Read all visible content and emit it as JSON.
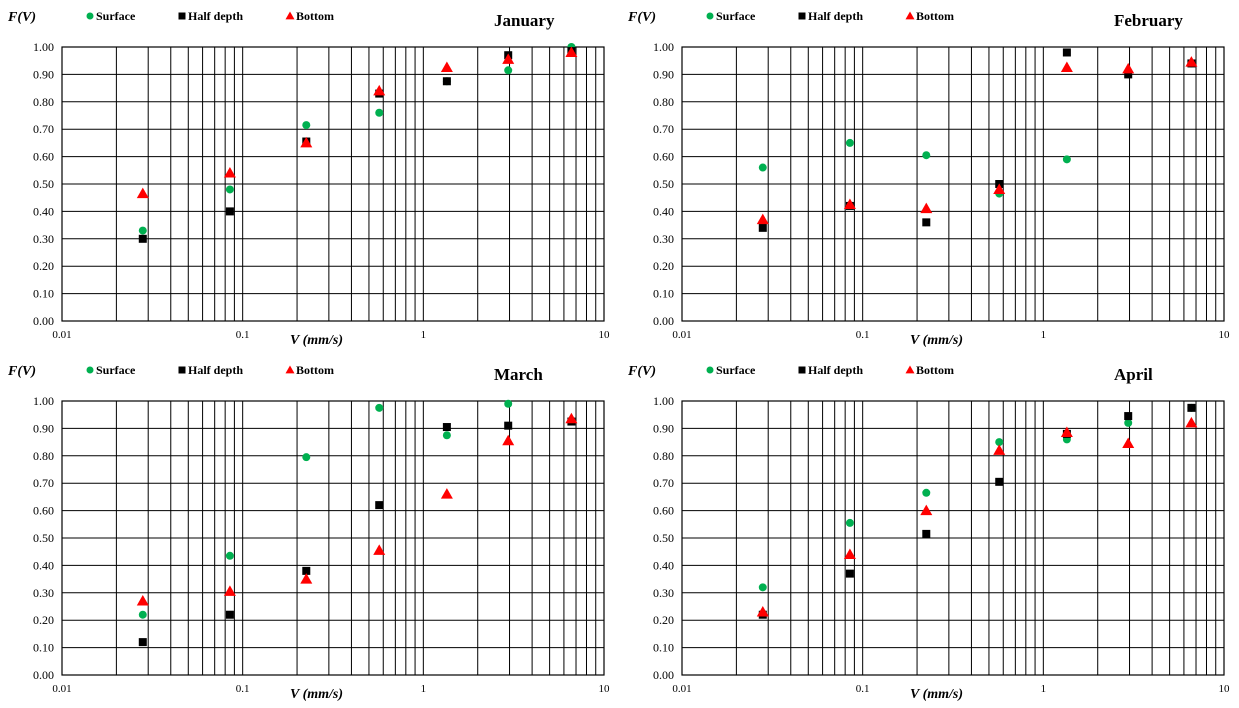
{
  "chart_data": [
    {
      "type": "scatter",
      "title": "January",
      "ylabel": "F(V)",
      "xlabel": "V (mm/s)",
      "xscale": "log",
      "xlim": [
        0.01,
        10
      ],
      "ylim": [
        0,
        1
      ],
      "grid": true,
      "legend_position": "top-left",
      "x_tick_labels": [
        "0.01",
        "0.1",
        "1",
        "10"
      ],
      "y_tick_labels": [
        "0.00",
        "0.10",
        "0.20",
        "0.30",
        "0.40",
        "0.50",
        "0.60",
        "0.70",
        "0.80",
        "0.90",
        "1.00"
      ],
      "series": [
        {
          "name": "Surface",
          "marker": "circle",
          "color": "#00b050",
          "points": [
            [
              0.028,
              0.33
            ],
            [
              0.085,
              0.48
            ],
            [
              0.225,
              0.715
            ],
            [
              0.57,
              0.76
            ],
            [
              1.35,
              0.875
            ],
            [
              2.95,
              0.915
            ],
            [
              6.6,
              1.0
            ]
          ]
        },
        {
          "name": "Half depth",
          "marker": "square",
          "color": "#000000",
          "points": [
            [
              0.028,
              0.3
            ],
            [
              0.085,
              0.4
            ],
            [
              0.225,
              0.655
            ],
            [
              0.57,
              0.83
            ],
            [
              1.35,
              0.875
            ],
            [
              2.95,
              0.97
            ],
            [
              6.6,
              0.985
            ]
          ]
        },
        {
          "name": "Bottom",
          "marker": "triangle",
          "color": "#ff0000",
          "points": [
            [
              0.028,
              0.465
            ],
            [
              0.085,
              0.54
            ],
            [
              0.225,
              0.65
            ],
            [
              0.57,
              0.84
            ],
            [
              1.35,
              0.925
            ],
            [
              2.95,
              0.955
            ],
            [
              6.6,
              0.98
            ]
          ]
        }
      ]
    },
    {
      "type": "scatter",
      "title": "February",
      "ylabel": "F(V)",
      "xlabel": "V (mm/s)",
      "xscale": "log",
      "xlim": [
        0.01,
        10
      ],
      "ylim": [
        0,
        1
      ],
      "grid": true,
      "legend_position": "top-left",
      "x_tick_labels": [
        "0.01",
        "0.1",
        "1",
        "10"
      ],
      "y_tick_labels": [
        "0.00",
        "0.10",
        "0.20",
        "0.30",
        "0.40",
        "0.50",
        "0.60",
        "0.70",
        "0.80",
        "0.90",
        "1.00"
      ],
      "series": [
        {
          "name": "Surface",
          "marker": "circle",
          "color": "#00b050",
          "points": [
            [
              0.028,
              0.56
            ],
            [
              0.085,
              0.65
            ],
            [
              0.225,
              0.605
            ],
            [
              0.57,
              0.465
            ],
            [
              1.35,
              0.59
            ],
            [
              2.95,
              0.91
            ],
            [
              6.6,
              0.94
            ]
          ]
        },
        {
          "name": "Half depth",
          "marker": "square",
          "color": "#000000",
          "points": [
            [
              0.028,
              0.34
            ],
            [
              0.085,
              0.42
            ],
            [
              0.225,
              0.36
            ],
            [
              0.57,
              0.5
            ],
            [
              1.35,
              0.98
            ],
            [
              2.95,
              0.9
            ],
            [
              6.6,
              0.94
            ]
          ]
        },
        {
          "name": "Bottom",
          "marker": "triangle",
          "color": "#ff0000",
          "points": [
            [
              0.028,
              0.37
            ],
            [
              0.085,
              0.425
            ],
            [
              0.225,
              0.41
            ],
            [
              0.57,
              0.48
            ],
            [
              1.35,
              0.925
            ],
            [
              2.95,
              0.92
            ],
            [
              6.6,
              0.945
            ]
          ]
        }
      ]
    },
    {
      "type": "scatter",
      "title": "March",
      "ylabel": "F(V)",
      "xlabel": "V (mm/s)",
      "xscale": "log",
      "xlim": [
        0.01,
        10
      ],
      "ylim": [
        0,
        1
      ],
      "grid": true,
      "legend_position": "top-left",
      "x_tick_labels": [
        "0.01",
        "0.1",
        "1",
        "10"
      ],
      "y_tick_labels": [
        "0.00",
        "0.10",
        "0.20",
        "0.30",
        "0.40",
        "0.50",
        "0.60",
        "0.70",
        "0.80",
        "0.90",
        "1.00"
      ],
      "series": [
        {
          "name": "Surface",
          "marker": "circle",
          "color": "#00b050",
          "points": [
            [
              0.028,
              0.22
            ],
            [
              0.085,
              0.435
            ],
            [
              0.225,
              0.795
            ],
            [
              0.57,
              0.975
            ],
            [
              1.35,
              0.875
            ],
            [
              2.95,
              0.99
            ],
            [
              6.6,
              0.925
            ]
          ]
        },
        {
          "name": "Half depth",
          "marker": "square",
          "color": "#000000",
          "points": [
            [
              0.028,
              0.12
            ],
            [
              0.085,
              0.22
            ],
            [
              0.225,
              0.38
            ],
            [
              0.57,
              0.62
            ],
            [
              1.35,
              0.905
            ],
            [
              2.95,
              0.91
            ],
            [
              6.6,
              0.925
            ]
          ]
        },
        {
          "name": "Bottom",
          "marker": "triangle",
          "color": "#ff0000",
          "points": [
            [
              0.028,
              0.27
            ],
            [
              0.085,
              0.305
            ],
            [
              0.225,
              0.35
            ],
            [
              0.57,
              0.455
            ],
            [
              1.35,
              0.66
            ],
            [
              2.95,
              0.855
            ],
            [
              6.6,
              0.935
            ]
          ]
        }
      ]
    },
    {
      "type": "scatter",
      "title": "April",
      "ylabel": "F(V)",
      "xlabel": "V (mm/s)",
      "xscale": "log",
      "xlim": [
        0.01,
        10
      ],
      "ylim": [
        0,
        1
      ],
      "grid": true,
      "legend_position": "top-left",
      "x_tick_labels": [
        "0.01",
        "0.1",
        "1",
        "10"
      ],
      "y_tick_labels": [
        "0.00",
        "0.10",
        "0.20",
        "0.30",
        "0.40",
        "0.50",
        "0.60",
        "0.70",
        "0.80",
        "0.90",
        "1.00"
      ],
      "series": [
        {
          "name": "Surface",
          "marker": "circle",
          "color": "#00b050",
          "points": [
            [
              0.028,
              0.32
            ],
            [
              0.085,
              0.555
            ],
            [
              0.225,
              0.665
            ],
            [
              0.57,
              0.85
            ],
            [
              1.35,
              0.86
            ],
            [
              2.95,
              0.92
            ],
            [
              6.6,
              0.975
            ]
          ]
        },
        {
          "name": "Half depth",
          "marker": "square",
          "color": "#000000",
          "points": [
            [
              0.028,
              0.22
            ],
            [
              0.085,
              0.37
            ],
            [
              0.225,
              0.515
            ],
            [
              0.57,
              0.705
            ],
            [
              1.35,
              0.88
            ],
            [
              2.95,
              0.945
            ],
            [
              6.6,
              0.975
            ]
          ]
        },
        {
          "name": "Bottom",
          "marker": "triangle",
          "color": "#ff0000",
          "points": [
            [
              0.028,
              0.23
            ],
            [
              0.085,
              0.44
            ],
            [
              0.225,
              0.6
            ],
            [
              0.57,
              0.82
            ],
            [
              1.35,
              0.885
            ],
            [
              2.95,
              0.845
            ],
            [
              6.6,
              0.92
            ]
          ]
        }
      ]
    }
  ]
}
